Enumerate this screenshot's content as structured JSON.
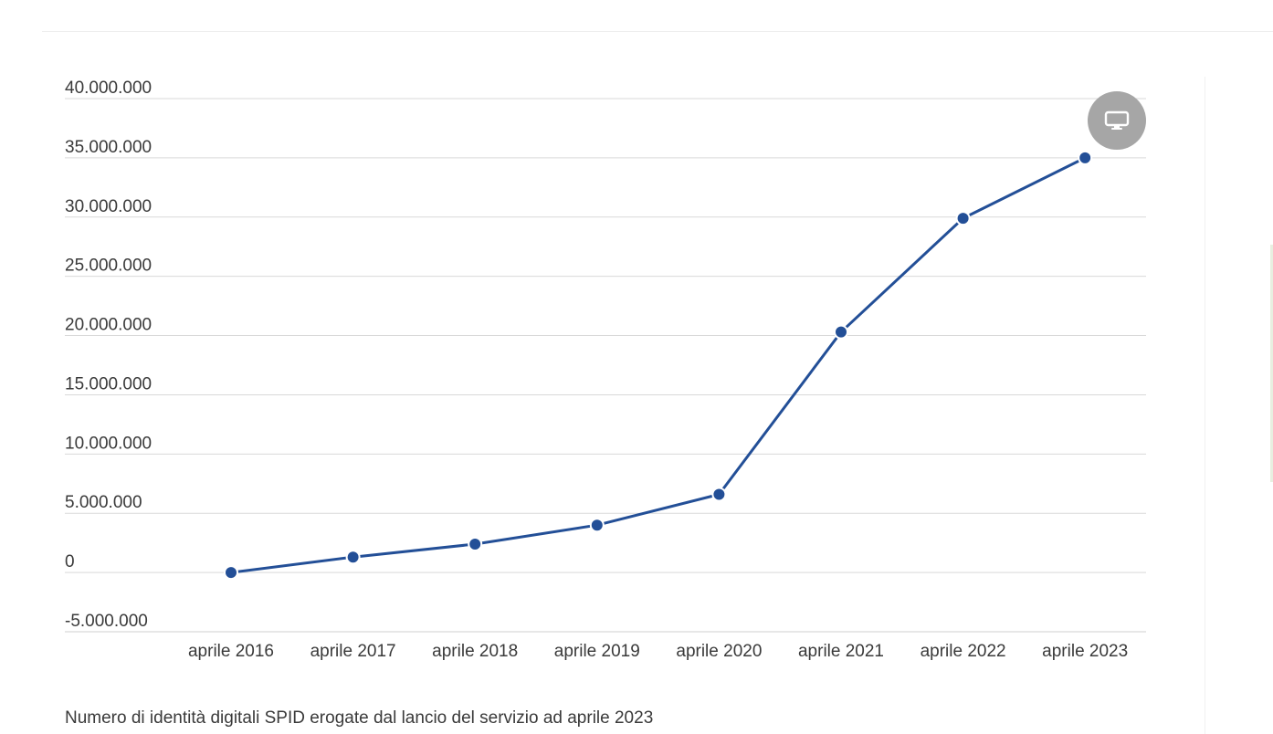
{
  "chart_data": {
    "type": "line",
    "title": "",
    "xlabel": "",
    "ylabel": "",
    "categories": [
      "aprile 2016",
      "aprile 2017",
      "aprile 2018",
      "aprile 2019",
      "aprile 2020",
      "aprile 2021",
      "aprile 2022",
      "aprile 2023"
    ],
    "series": [
      {
        "values": [
          0,
          1300000,
          2400000,
          4000000,
          6600000,
          20300000,
          29900000,
          35000000
        ],
        "color": "#234f97"
      }
    ],
    "ylim": [
      -5000000,
      40000000
    ],
    "yticks": [
      -5000000,
      0,
      5000000,
      10000000,
      15000000,
      20000000,
      25000000,
      30000000,
      35000000,
      40000000
    ],
    "ytick_labels": [
      "-5.000.000",
      "0",
      "5.000.000",
      "10.000.000",
      "15.000.000",
      "20.000.000",
      "25.000.000",
      "30.000.000",
      "35.000.000",
      "40.000.000"
    ],
    "grid": true,
    "legend": "none"
  },
  "caption": "Numero di identità digitali SPID erogate dal lancio del servizio ad aprile 2023",
  "controls": {
    "fullscreen_icon": "monitor-icon",
    "button_color": "#a6a6a6"
  }
}
